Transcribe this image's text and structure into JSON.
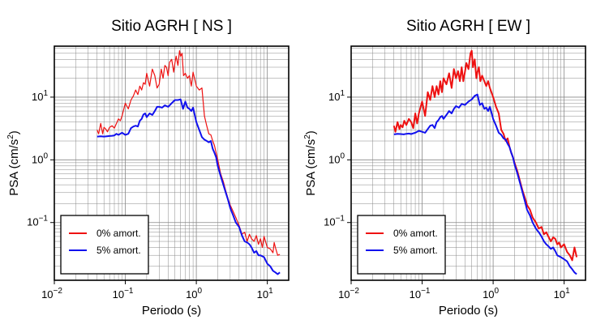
{
  "chart_data": [
    {
      "type": "line",
      "title": "Sitio AGRH [ NS ]",
      "xlabel": "Periodo (s)",
      "ylabel_main": "PSA (cm/s",
      "ylabel_sup": "2",
      "ylabel_close": ")",
      "xscale": "log",
      "yscale": "log",
      "xlim": [
        0.01,
        20
      ],
      "ylim": [
        0.012,
        65
      ],
      "grid": true,
      "legend_position": "bottom-left",
      "x_ticks": [
        {
          "value": 0.01,
          "base": "10",
          "exp": "−2"
        },
        {
          "value": 0.1,
          "base": "10",
          "exp": "−1"
        },
        {
          "value": 1,
          "base": "10",
          "exp": "0"
        },
        {
          "value": 10,
          "base": "10",
          "exp": "1"
        }
      ],
      "y_ticks": [
        {
          "value": 0.1,
          "base": "10",
          "exp": "−1"
        },
        {
          "value": 1,
          "base": "10",
          "exp": "0"
        },
        {
          "value": 10,
          "base": "10",
          "exp": "1"
        }
      ],
      "series": [
        {
          "name": "0% amort.",
          "color": "#ee1111",
          "width": 1.2,
          "x": [
            0.04,
            0.042,
            0.045,
            0.048,
            0.05,
            0.053,
            0.056,
            0.06,
            0.065,
            0.07,
            0.075,
            0.08,
            0.085,
            0.09,
            0.1,
            0.11,
            0.12,
            0.13,
            0.14,
            0.15,
            0.16,
            0.17,
            0.18,
            0.19,
            0.2,
            0.22,
            0.24,
            0.26,
            0.28,
            0.3,
            0.32,
            0.34,
            0.36,
            0.38,
            0.4,
            0.42,
            0.45,
            0.48,
            0.5,
            0.52,
            0.55,
            0.58,
            0.6,
            0.63,
            0.66,
            0.7,
            0.75,
            0.8,
            0.85,
            0.9,
            1.0,
            1.1,
            1.2,
            1.3,
            1.4,
            1.5,
            1.6,
            1.7,
            1.8,
            1.9,
            2.0,
            2.2,
            2.4,
            2.6,
            2.8,
            3.0,
            3.3,
            3.6,
            4.0,
            4.4,
            4.8,
            5.2,
            5.6,
            6.0,
            6.5,
            7.0,
            7.5,
            8.0,
            8.5,
            9.0,
            10.0,
            11.0,
            12.0,
            12.5,
            13.0,
            14.0,
            15.0
          ],
          "y": [
            3.0,
            2.6,
            3.8,
            2.6,
            3.3,
            3.1,
            2.8,
            3.3,
            3.5,
            3.2,
            3.8,
            4.5,
            4.2,
            5.0,
            8.0,
            6.5,
            9.0,
            10.5,
            13.0,
            11.0,
            15.0,
            13.0,
            17.0,
            16.0,
            24.0,
            15.0,
            28.0,
            22.0,
            14.0,
            16.0,
            28.0,
            20.0,
            32.0,
            30.0,
            22.0,
            36.0,
            40.0,
            25.0,
            35.0,
            45.0,
            32.0,
            55.0,
            45.0,
            50.0,
            22.0,
            24.0,
            20.0,
            22.0,
            15.0,
            25.0,
            15.0,
            13.0,
            14.0,
            5.0,
            3.5,
            2.6,
            2.5,
            2.0,
            1.7,
            1.3,
            1.0,
            0.6,
            0.45,
            0.32,
            0.24,
            0.19,
            0.15,
            0.12,
            0.09,
            0.065,
            0.07,
            0.05,
            0.065,
            0.055,
            0.05,
            0.062,
            0.045,
            0.055,
            0.04,
            0.06,
            0.04,
            0.038,
            0.033,
            0.048,
            0.04,
            0.03,
            0.031
          ]
        },
        {
          "name": "5% amort.",
          "color": "#1111ee",
          "width": 2,
          "x": [
            0.04,
            0.045,
            0.05,
            0.055,
            0.06,
            0.065,
            0.07,
            0.075,
            0.08,
            0.09,
            0.1,
            0.11,
            0.12,
            0.13,
            0.14,
            0.15,
            0.16,
            0.17,
            0.18,
            0.19,
            0.2,
            0.22,
            0.24,
            0.26,
            0.28,
            0.3,
            0.33,
            0.36,
            0.4,
            0.45,
            0.5,
            0.55,
            0.6,
            0.65,
            0.7,
            0.75,
            0.8,
            0.85,
            0.9,
            1.0,
            1.1,
            1.2,
            1.3,
            1.4,
            1.5,
            1.6,
            1.7,
            1.8,
            1.9,
            2.0,
            2.2,
            2.4,
            2.6,
            2.8,
            3.0,
            3.3,
            3.6,
            4.0,
            4.4,
            4.8,
            5.2,
            5.6,
            6.0,
            6.5,
            7.0,
            7.5,
            8.0,
            9.0,
            10.0,
            11.0,
            12.0,
            13.0,
            14.0,
            15.0
          ],
          "y": [
            2.35,
            2.37,
            2.35,
            2.38,
            2.4,
            2.42,
            2.45,
            2.6,
            2.5,
            2.7,
            2.5,
            2.6,
            3.2,
            3.4,
            3.5,
            3.4,
            4.2,
            4.5,
            5.3,
            5.5,
            4.8,
            5.5,
            5.2,
            6.0,
            7.0,
            7.0,
            6.8,
            7.4,
            7.0,
            8.0,
            9.0,
            9.0,
            9.2,
            6.5,
            8.5,
            6.8,
            6.5,
            6.0,
            6.8,
            4.0,
            3.0,
            2.3,
            2.1,
            2.0,
            1.9,
            2.0,
            1.5,
            1.3,
            1.1,
            0.8,
            0.55,
            0.4,
            0.3,
            0.23,
            0.17,
            0.13,
            0.1,
            0.085,
            0.062,
            0.05,
            0.048,
            0.045,
            0.04,
            0.033,
            0.035,
            0.03,
            0.03,
            0.028,
            0.022,
            0.02,
            0.017,
            0.016,
            0.015,
            0.016
          ]
        }
      ]
    },
    {
      "type": "line",
      "title": "Sitio AGRH [ EW ]",
      "xlabel": "Periodo (s)",
      "ylabel_main": "PSA (cm/s",
      "ylabel_sup": "2",
      "ylabel_close": ")",
      "xscale": "log",
      "yscale": "log",
      "xlim": [
        0.01,
        20
      ],
      "ylim": [
        0.012,
        65
      ],
      "grid": true,
      "legend_position": "bottom-left",
      "x_ticks": [
        {
          "value": 0.01,
          "base": "10",
          "exp": "−2"
        },
        {
          "value": 0.1,
          "base": "10",
          "exp": "−1"
        },
        {
          "value": 1,
          "base": "10",
          "exp": "0"
        },
        {
          "value": 10,
          "base": "10",
          "exp": "1"
        }
      ],
      "y_ticks": [
        {
          "value": 0.1,
          "base": "10",
          "exp": "−1"
        },
        {
          "value": 1,
          "base": "10",
          "exp": "0"
        },
        {
          "value": 10,
          "base": "10",
          "exp": "1"
        }
      ],
      "series": [
        {
          "name": "0% amort.",
          "color": "#ee1111",
          "width": 2,
          "x": [
            0.04,
            0.042,
            0.045,
            0.048,
            0.05,
            0.053,
            0.056,
            0.06,
            0.065,
            0.07,
            0.075,
            0.08,
            0.085,
            0.09,
            0.1,
            0.11,
            0.12,
            0.13,
            0.14,
            0.15,
            0.16,
            0.17,
            0.18,
            0.19,
            0.2,
            0.22,
            0.24,
            0.26,
            0.28,
            0.3,
            0.32,
            0.34,
            0.36,
            0.38,
            0.4,
            0.42,
            0.45,
            0.48,
            0.5,
            0.52,
            0.55,
            0.58,
            0.6,
            0.63,
            0.66,
            0.7,
            0.75,
            0.8,
            0.85,
            0.9,
            1.0,
            1.1,
            1.2,
            1.3,
            1.4,
            1.5,
            1.6,
            1.7,
            1.8,
            1.9,
            2.0,
            2.2,
            2.4,
            2.6,
            2.8,
            3.0,
            3.3,
            3.6,
            4.0,
            4.4,
            4.8,
            5.2,
            5.6,
            6.0,
            6.5,
            7.0,
            7.5,
            8.0,
            8.5,
            9.0,
            10.0,
            11.0,
            12.0,
            13.0,
            14.0,
            15.0
          ],
          "y": [
            3.5,
            2.8,
            4.0,
            3.1,
            3.6,
            3.3,
            4.2,
            3.6,
            4.5,
            4.0,
            3.2,
            5.5,
            3.8,
            5.5,
            8.5,
            5.0,
            12.0,
            9.0,
            15.0,
            10.0,
            15.0,
            11.0,
            18.0,
            12.0,
            20.0,
            16.0,
            24.0,
            14.0,
            28.0,
            20.0,
            26.0,
            18.0,
            30.0,
            18.0,
            25.0,
            35.0,
            28.0,
            50.0,
            55.0,
            30.0,
            40.0,
            20.0,
            25.0,
            30.0,
            18.0,
            22.0,
            18.0,
            15.0,
            18.0,
            14.0,
            10.0,
            7.0,
            5.5,
            3.0,
            2.6,
            2.0,
            2.2,
            1.6,
            1.3,
            1.1,
            0.9,
            0.65,
            0.45,
            0.32,
            0.25,
            0.19,
            0.16,
            0.12,
            0.1,
            0.08,
            0.085,
            0.065,
            0.07,
            0.06,
            0.05,
            0.058,
            0.055,
            0.045,
            0.048,
            0.04,
            0.045,
            0.034,
            0.03,
            0.025,
            0.04,
            0.028
          ]
        },
        {
          "name": "5% amort.",
          "color": "#1111ee",
          "width": 2,
          "x": [
            0.04,
            0.045,
            0.05,
            0.055,
            0.06,
            0.065,
            0.07,
            0.075,
            0.08,
            0.09,
            0.1,
            0.11,
            0.12,
            0.13,
            0.14,
            0.15,
            0.16,
            0.17,
            0.18,
            0.19,
            0.2,
            0.22,
            0.24,
            0.26,
            0.28,
            0.3,
            0.33,
            0.36,
            0.4,
            0.45,
            0.5,
            0.55,
            0.6,
            0.65,
            0.7,
            0.75,
            0.8,
            0.85,
            0.9,
            1.0,
            1.1,
            1.2,
            1.3,
            1.4,
            1.5,
            1.6,
            1.7,
            1.8,
            1.9,
            2.0,
            2.2,
            2.4,
            2.6,
            2.8,
            3.0,
            3.3,
            3.6,
            4.0,
            4.4,
            4.8,
            5.2,
            5.6,
            6.0,
            6.5,
            7.0,
            7.5,
            8.0,
            9.0,
            10.0,
            11.0,
            12.0,
            13.0,
            14.0,
            15.0
          ],
          "y": [
            2.55,
            2.6,
            2.58,
            2.55,
            2.6,
            2.62,
            2.58,
            2.65,
            2.7,
            2.9,
            2.8,
            2.7,
            3.1,
            3.5,
            3.6,
            3.2,
            4.0,
            4.3,
            4.8,
            5.0,
            4.5,
            5.2,
            6.0,
            5.5,
            6.5,
            7.2,
            6.8,
            7.8,
            7.5,
            8.5,
            9.2,
            10.5,
            11.0,
            7.5,
            8.0,
            6.5,
            6.8,
            6.0,
            7.0,
            4.5,
            3.5,
            2.7,
            2.5,
            2.2,
            2.1,
            1.8,
            1.6,
            1.3,
            1.1,
            0.85,
            0.6,
            0.42,
            0.3,
            0.22,
            0.16,
            0.13,
            0.1,
            0.08,
            0.07,
            0.06,
            0.05,
            0.045,
            0.042,
            0.038,
            0.04,
            0.035,
            0.03,
            0.028,
            0.026,
            0.024,
            0.02,
            0.018,
            0.016,
            0.015
          ]
        }
      ]
    }
  ]
}
